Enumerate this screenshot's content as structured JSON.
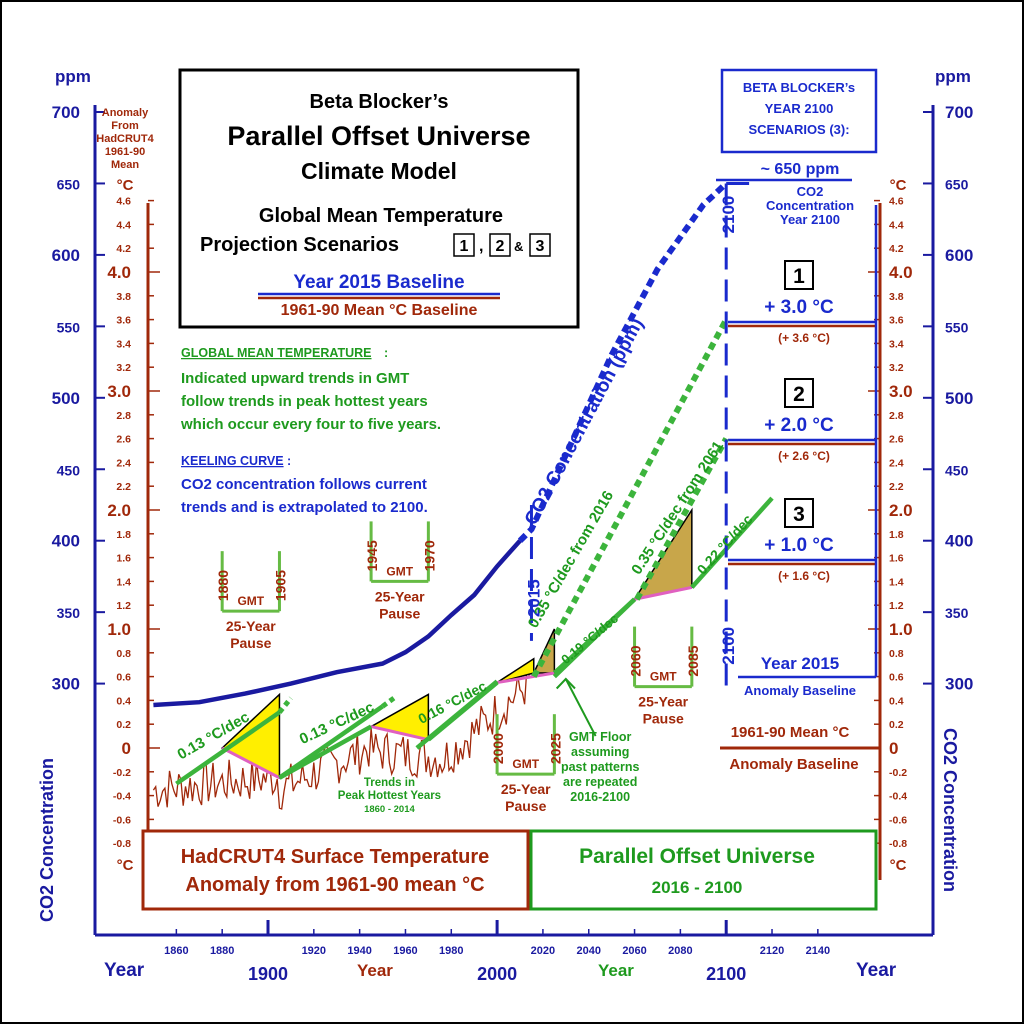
{
  "title_box": {
    "line1": "Beta Blocker’s",
    "line2": "Parallel Offset Universe",
    "line3": "Climate Model",
    "line4": "Global Mean Temperature",
    "line5_prefix": "Projection Scenarios",
    "s1": "1",
    "comma": ",",
    "s2": "2",
    "amp": "&",
    "s3": "3",
    "baseline_2015": "Year 2015 Baseline",
    "baseline_1961": "1961-90 Mean °C Baseline"
  },
  "notes": {
    "gmt_heading": "GLOBAL MEAN TEMPERATURE",
    "gmt_colon": ":",
    "gmt_text": [
      "Indicated upward trends in GMT",
      "follow trends in peak hottest years",
      "which occur every four to five years."
    ],
    "keeling_heading": "KEELING CURVE",
    "keeling_colon": ":",
    "keeling_text": [
      "CO2 concentration follows current",
      "trends and is extrapolated to 2100."
    ]
  },
  "scenario_box": {
    "lines": [
      "BETA BLOCKER’s",
      "YEAR 2100",
      "SCENARIOS (3):"
    ]
  },
  "co2_2100": {
    "value": "~ 650 ppm",
    "label": [
      "CO2",
      "Concentration",
      "Year 2100"
    ]
  },
  "scenarios": [
    {
      "num": "1",
      "temp": "+ 3.0 °C",
      "alt": "(+ 3.6 °C)"
    },
    {
      "num": "2",
      "temp": "+ 2.0 °C",
      "alt": "(+ 2.6 °C)"
    },
    {
      "num": "3",
      "temp": "+ 1.0 °C",
      "alt": "(+ 1.6 °C)"
    }
  ],
  "right_baselines": {
    "year2015": "Year 2015",
    "anomaly_baseline": "Anomaly Baseline",
    "mean1961": "1961-90 Mean °C",
    "anomaly_baseline2": "Anomaly Baseline"
  },
  "axes": {
    "ppm_unit": "ppm",
    "ppm_ticks": [
      "700",
      "650",
      "600",
      "550",
      "500",
      "450",
      "400",
      "350",
      "300"
    ],
    "left_anomaly_label": [
      "Anomaly",
      "From",
      "HadCRUT4",
      "1961-90",
      "Mean"
    ],
    "deg_c": "°C",
    "co2_vertical_label": "CO2 Concentration",
    "temp_major": [
      "4.0",
      "3.0",
      "2.0",
      "1.0",
      "0"
    ],
    "temp_top_minor": "4.6",
    "year_word": "Year",
    "year_minor": [
      "1860",
      "1880",
      "1920",
      "1940",
      "1960",
      "1980",
      "2020",
      "2040",
      "2060",
      "2080",
      "2120",
      "2140"
    ],
    "year_major": [
      "1900",
      "2000",
      "2100"
    ]
  },
  "chart_data": {
    "type": "line",
    "x_range": [
      1850,
      2160
    ],
    "temp_range_c": [
      -0.9,
      4.7
    ],
    "co2_range_ppm": [
      280,
      720
    ],
    "series": [
      {
        "name": "CO2 Concentration (ppm)",
        "x": [
          1850,
          1870,
          1890,
          1910,
          1930,
          1950,
          1960,
          1970,
          1980,
          1990,
          2000,
          2010,
          2015,
          2030,
          2050,
          2070,
          2090,
          2100
        ],
        "y": [
          285,
          287,
          293,
          300,
          308,
          314,
          322,
          333,
          348,
          362,
          382,
          400,
          408,
          460,
          530,
          590,
          635,
          650
        ]
      },
      {
        "name": "0.13 °C/dec",
        "x": [
          1860,
          1905
        ],
        "y": [
          -0.3,
          0.3
        ]
      },
      {
        "name": "0.13 °C/dec",
        "x": [
          1905,
          1950
        ],
        "y": [
          -0.25,
          0.35
        ]
      },
      {
        "name": "0.16 °C/dec",
        "x": [
          1965,
          2000
        ],
        "y": [
          0.0,
          0.56
        ]
      },
      {
        "name": "0.35 °C/dec from 2016",
        "x": [
          2016,
          2100
        ],
        "y": [
          0.6,
          3.6
        ]
      },
      {
        "name": "0.19 °C/dec",
        "x": [
          2025,
          2060
        ],
        "y": [
          0.6,
          1.25
        ]
      },
      {
        "name": "0.35 °C/dec from 2061",
        "x": [
          2061,
          2100
        ],
        "y": [
          1.25,
          2.6
        ]
      },
      {
        "name": "0.22 °C/dec",
        "x": [
          2085,
          2120
        ],
        "y": [
          1.35,
          2.1
        ]
      }
    ],
    "annotations": {
      "pauses": [
        {
          "start": "1880",
          "end": "1905",
          "gmt": "GMT",
          "label": "25-Year",
          "label2": "Pause"
        },
        {
          "start": "1945",
          "end": "1970",
          "gmt": "GMT",
          "label": "25-Year",
          "label2": "Pause"
        },
        {
          "start": "2000",
          "end": "2025",
          "gmt": "GMT",
          "label": "25-Year",
          "label2": "Pause"
        },
        {
          "start": "2060",
          "end": "2085",
          "gmt": "GMT",
          "label": "25-Year",
          "label2": "Pause"
        }
      ],
      "rate_labels": [
        "0.13 °C/dec",
        "0.13 °C/dec",
        "0.16 °C/dec",
        "0.19 °C/dec",
        "0.22 °C/dec",
        "0.35 °C/dec from 2016",
        "0.35 °C/dec from 2061"
      ],
      "co2_curve_label": "CO2 Concentration (ppm)",
      "vert_2015": "2015",
      "vert_2100": "2100",
      "trends_note": [
        "Trends in",
        "Peak Hottest Years",
        "1860 - 2014"
      ],
      "floor_note": [
        "GMT  Floor",
        "assuming",
        "past patterns",
        "are repeated",
        "2016-2100"
      ]
    },
    "legend_boxes": {
      "hadcrut": [
        "HadCRUT4  Surface Temperature",
        "Anomaly from 1961-90 mean °C"
      ],
      "pou": [
        "Parallel Offset Universe",
        "2016 - 2100"
      ]
    }
  }
}
